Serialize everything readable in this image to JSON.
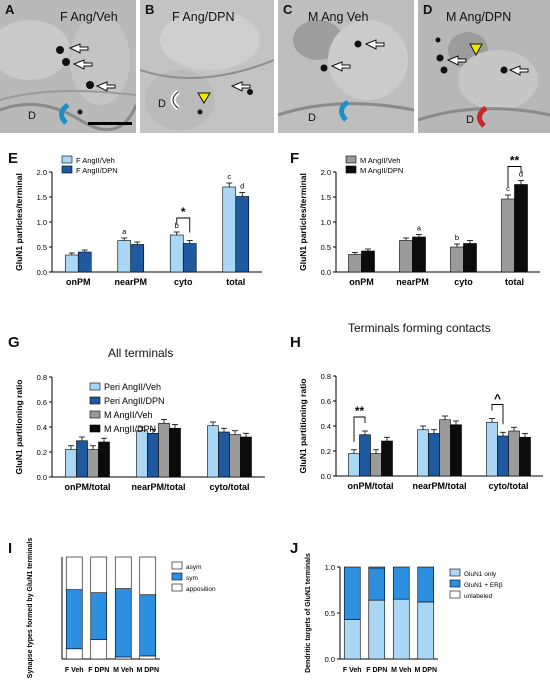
{
  "em_panels": [
    {
      "letter": "A",
      "title": "F Ang/Veh",
      "d": "D"
    },
    {
      "letter": "B",
      "title": "F Ang/DPN",
      "d": "D"
    },
    {
      "letter": "C",
      "title": "M Ang Veh",
      "d": "D"
    },
    {
      "letter": "D",
      "title": "M Ang/DPN",
      "d": "D"
    }
  ],
  "section_titles": {
    "all": "All terminals",
    "contacts": "Terminals forming contacts"
  },
  "colors": {
    "f_veh": "#a9d7f5",
    "f_dpn": "#1f5aa0",
    "m_veh": "#9b9b9b",
    "m_dpn": "#0c0c0c",
    "blue_mid": "#2d8fe0",
    "white_bar": "#ffffff",
    "err_bar": "#000000",
    "arrow_red": "#c62828",
    "arrow_cyan": "#1a90c8",
    "arrowhead_yellow": "#f2e600"
  },
  "chart_data": [
    {
      "id": "E",
      "letter": "E",
      "type": "bar",
      "ylabel": "GluN1 particles/terminal",
      "categories": [
        "onPM",
        "nearPM",
        "cyto",
        "total"
      ],
      "ylim": [
        0,
        2.0
      ],
      "yticks": [
        0.0,
        0.5,
        1.0,
        1.5,
        2.0
      ],
      "series": [
        {
          "name": "F AngII/Veh",
          "values": [
            0.34,
            0.63,
            0.74,
            1.7
          ],
          "err": [
            0.04,
            0.05,
            0.06,
            0.08
          ]
        },
        {
          "name": "F AngII/DPN",
          "values": [
            0.4,
            0.55,
            0.57,
            1.51
          ],
          "err": [
            0.04,
            0.05,
            0.06,
            0.08
          ]
        }
      ],
      "letters": [
        {
          "cat": 1,
          "text": "a"
        },
        {
          "cat": 2,
          "text": "b"
        },
        {
          "cat": 3,
          "text": "c"
        },
        {
          "cat": 3,
          "s": 1,
          "text": "d"
        }
      ],
      "bracket": {
        "cat": 2,
        "label": "*"
      }
    },
    {
      "id": "F",
      "letter": "F",
      "type": "bar",
      "ylabel": "GluN1 particles/terminal",
      "categories": [
        "onPM",
        "nearPM",
        "cyto",
        "total"
      ],
      "ylim": [
        0,
        2.0
      ],
      "yticks": [
        0.0,
        0.5,
        1.0,
        1.5,
        2.0
      ],
      "series": [
        {
          "name": "M AngII/Veh",
          "values": [
            0.35,
            0.63,
            0.5,
            1.46
          ],
          "err": [
            0.04,
            0.05,
            0.06,
            0.08
          ]
        },
        {
          "name": "M AngII/DPN",
          "values": [
            0.42,
            0.7,
            0.57,
            1.75
          ],
          "err": [
            0.04,
            0.05,
            0.06,
            0.08
          ]
        }
      ],
      "letters": [
        {
          "cat": 1,
          "s": 1,
          "text": "a"
        },
        {
          "cat": 2,
          "text": "b"
        },
        {
          "cat": 3,
          "text": "c"
        },
        {
          "cat": 3,
          "s": 1,
          "text": "d"
        }
      ],
      "bracket": {
        "cat": 3,
        "label": "**"
      }
    },
    {
      "id": "G",
      "letter": "G",
      "type": "bar",
      "ylabel": "GluN1 partitioning ratio",
      "categories": [
        "onPM/total",
        "nearPM/total",
        "cyto/total"
      ],
      "ylim": [
        0,
        0.8
      ],
      "yticks": [
        0.0,
        0.2,
        0.4,
        0.6,
        0.8
      ],
      "series": [
        {
          "name": "Peri AngII/Veh",
          "values": [
            0.22,
            0.37,
            0.41
          ],
          "err": [
            0.03,
            0.03,
            0.03
          ]
        },
        {
          "name": "Peri AngII/DPN",
          "values": [
            0.29,
            0.35,
            0.36
          ],
          "err": [
            0.03,
            0.03,
            0.03
          ]
        },
        {
          "name": "M AngII/Veh",
          "values": [
            0.22,
            0.43,
            0.34
          ],
          "err": [
            0.03,
            0.03,
            0.03
          ]
        },
        {
          "name": "M AngII/DPN",
          "values": [
            0.28,
            0.39,
            0.32
          ],
          "err": [
            0.03,
            0.03,
            0.03
          ]
        }
      ]
    },
    {
      "id": "H",
      "letter": "H",
      "type": "bar",
      "ylabel": "GluN1 partitioning ratio",
      "categories": [
        "onPM/total",
        "nearPM/total",
        "cyto/total"
      ],
      "ylim": [
        0,
        0.8
      ],
      "yticks": [
        0.0,
        0.2,
        0.4,
        0.6,
        0.8
      ],
      "series": [
        {
          "name": "",
          "values": [
            0.18,
            0.37,
            0.43
          ],
          "err": [
            0.03,
            0.03,
            0.03
          ]
        },
        {
          "name": "",
          "values": [
            0.33,
            0.34,
            0.32
          ],
          "err": [
            0.03,
            0.03,
            0.03
          ]
        },
        {
          "name": "",
          "values": [
            0.18,
            0.45,
            0.36
          ],
          "err": [
            0.03,
            0.03,
            0.03
          ]
        },
        {
          "name": "",
          "values": [
            0.28,
            0.41,
            0.31
          ],
          "err": [
            0.03,
            0.03,
            0.03
          ]
        }
      ],
      "brackets": [
        {
          "cat": 0,
          "label": "**"
        },
        {
          "cat": 2,
          "label": "^"
        }
      ]
    },
    {
      "id": "I",
      "letter": "I",
      "type": "bar",
      "ylabel": "Synapse types formed by GluN1 terminals",
      "categories": [
        "F Veh",
        "F DPN",
        "M Veh",
        "M DPN"
      ],
      "ylim": [
        0,
        1.0
      ],
      "yticks": [],
      "stack_names": [
        "apposition",
        "sym",
        "asym"
      ],
      "stacks": [
        [
          0.1,
          0.58,
          0.32
        ],
        [
          0.19,
          0.46,
          0.35
        ],
        [
          0.02,
          0.67,
          0.31
        ],
        [
          0.03,
          0.6,
          0.37
        ]
      ]
    },
    {
      "id": "J",
      "letter": "J",
      "type": "bar",
      "ylabel": "Dendritic targets of GluN1 terminals",
      "categories": [
        "F Veh",
        "F DPN",
        "M Veh",
        "M DPN"
      ],
      "ylim": [
        0,
        1.0
      ],
      "yticks": [
        0.0,
        0.5,
        1.0
      ],
      "stack_names": [
        "GluN1 only",
        "GluN1 + ERβ",
        "unlabeled"
      ],
      "stacks": [
        [
          0.43,
          0.57,
          0.0
        ],
        [
          0.64,
          0.35,
          0.01
        ],
        [
          0.65,
          0.35,
          0.0
        ],
        [
          0.62,
          0.38,
          0.0
        ]
      ]
    }
  ]
}
